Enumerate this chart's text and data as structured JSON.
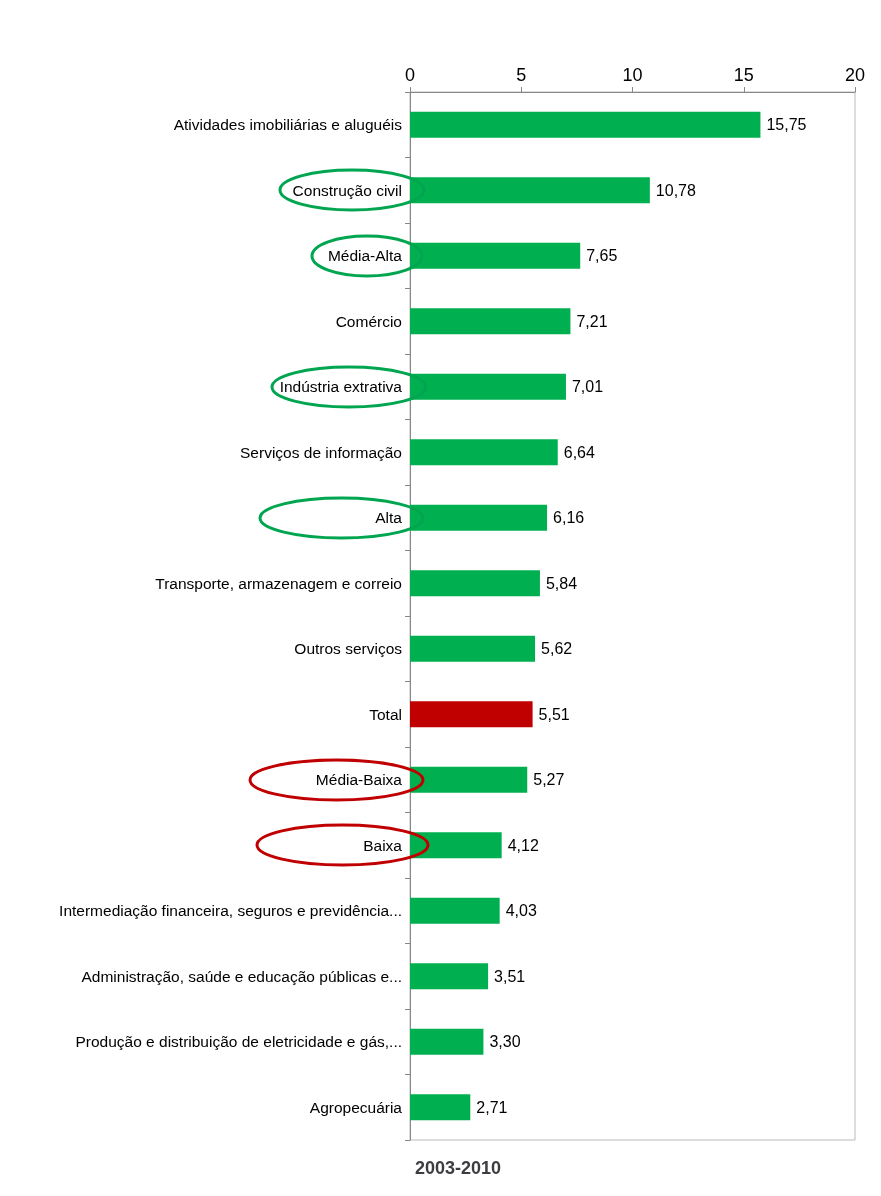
{
  "chart_data": {
    "type": "bar",
    "orientation": "horizontal",
    "xlabel": "2003-2010",
    "categories": [
      "Atividades imobiliárias e aluguéis",
      "Construção civil",
      "Média-Alta",
      "Comércio",
      "Indústria extrativa",
      "Serviços de informação",
      "Alta",
      "Transporte, armazenagem e correio",
      "Outros serviços",
      "Total",
      "Média-Baixa",
      "Baixa",
      "Intermediação financeira, seguros e previdência...",
      "Administração, saúde e educação públicas e...",
      "Produção e distribuição de eletricidade e gás,...",
      "Agropecuária"
    ],
    "values": [
      15.75,
      10.78,
      7.65,
      7.21,
      7.01,
      6.64,
      6.16,
      5.84,
      5.62,
      5.51,
      5.27,
      4.12,
      4.03,
      3.51,
      3.3,
      2.71
    ],
    "value_labels": [
      "15,75",
      "10,78",
      "7,65",
      "7,21",
      "7,01",
      "6,64",
      "6,16",
      "5,84",
      "5,62",
      "5,51",
      "5,27",
      "4,12",
      "4,03",
      "3,51",
      "3,30",
      "2,71"
    ],
    "colors": [
      "#00b050",
      "#00b050",
      "#00b050",
      "#00b050",
      "#00b050",
      "#00b050",
      "#00b050",
      "#00b050",
      "#00b050",
      "#c00000",
      "#00b050",
      "#00b050",
      "#00b050",
      "#00b050",
      "#00b050",
      "#00b050"
    ],
    "xlim": [
      0,
      20
    ],
    "xticks": [
      0,
      5,
      10,
      15,
      20
    ],
    "grid": false
  }
}
